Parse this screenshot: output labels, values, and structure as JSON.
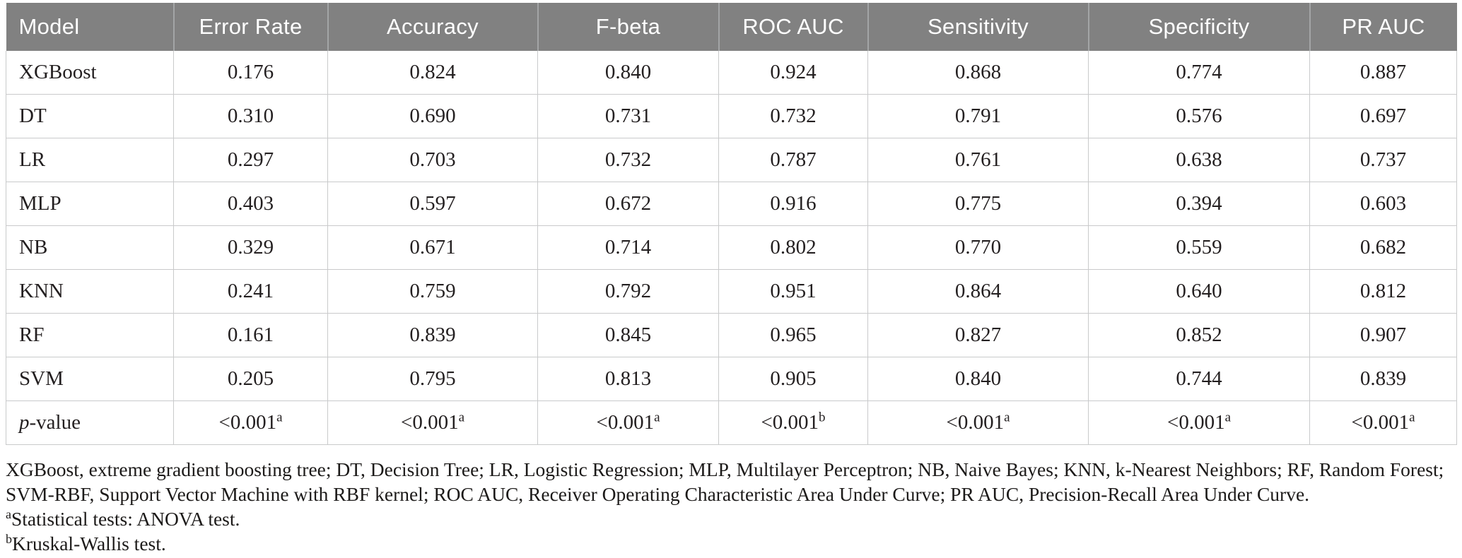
{
  "table": {
    "columns": [
      "Model",
      "Error Rate",
      "Accuracy",
      "F-beta",
      "ROC AUC",
      "Sensitivity",
      "Specificity",
      "PR AUC"
    ],
    "rows": [
      {
        "model": "XGBoost",
        "values": [
          "0.176",
          "0.824",
          "0.840",
          "0.924",
          "0.868",
          "0.774",
          "0.887"
        ]
      },
      {
        "model": "DT",
        "values": [
          "0.310",
          "0.690",
          "0.731",
          "0.732",
          "0.791",
          "0.576",
          "0.697"
        ]
      },
      {
        "model": "LR",
        "values": [
          "0.297",
          "0.703",
          "0.732",
          "0.787",
          "0.761",
          "0.638",
          "0.737"
        ]
      },
      {
        "model": "MLP",
        "values": [
          "0.403",
          "0.597",
          "0.672",
          "0.916",
          "0.775",
          "0.394",
          "0.603"
        ]
      },
      {
        "model": "NB",
        "values": [
          "0.329",
          "0.671",
          "0.714",
          "0.802",
          "0.770",
          "0.559",
          "0.682"
        ]
      },
      {
        "model": "KNN",
        "values": [
          "0.241",
          "0.759",
          "0.792",
          "0.951",
          "0.864",
          "0.640",
          "0.812"
        ]
      },
      {
        "model": "RF",
        "values": [
          "0.161",
          "0.839",
          "0.845",
          "0.965",
          "0.827",
          "0.852",
          "0.907"
        ]
      },
      {
        "model": "SVM",
        "values": [
          "0.205",
          "0.795",
          "0.813",
          "0.905",
          "0.840",
          "0.744",
          "0.839"
        ]
      }
    ],
    "pvalue_row": {
      "label_italic": "p",
      "label_rest": "-value",
      "values": [
        {
          "text": "<0.001",
          "sup": "a"
        },
        {
          "text": "<0.001",
          "sup": "a"
        },
        {
          "text": "<0.001",
          "sup": "a"
        },
        {
          "text": "<0.001",
          "sup": "b"
        },
        {
          "text": "<0.001",
          "sup": "a"
        },
        {
          "text": "<0.001",
          "sup": "a"
        },
        {
          "text": "<0.001",
          "sup": "a"
        }
      ]
    }
  },
  "footnotes": {
    "abbreviations": "XGBoost, extreme gradient boosting tree; DT, Decision Tree; LR, Logistic Regression; MLP, Multilayer Perceptron; NB, Naive Bayes; KNN, k-Nearest Neighbors; RF, Random Forest; SVM-RBF, Support Vector Machine with RBF kernel; ROC AUC, Receiver Operating Characteristic Area Under Curve; PR AUC, Precision-Recall Area Under Curve.",
    "notes": [
      {
        "sup": "a",
        "text": "Statistical tests: ANOVA test."
      },
      {
        "sup": "b",
        "text": "Kruskal-Wallis test."
      }
    ]
  },
  "colors": {
    "header_bg": "#818181",
    "header_text": "#ffffff",
    "header_divider": "#a3a5a6",
    "body_border": "#c9cacb",
    "body_text": "#231f20"
  }
}
